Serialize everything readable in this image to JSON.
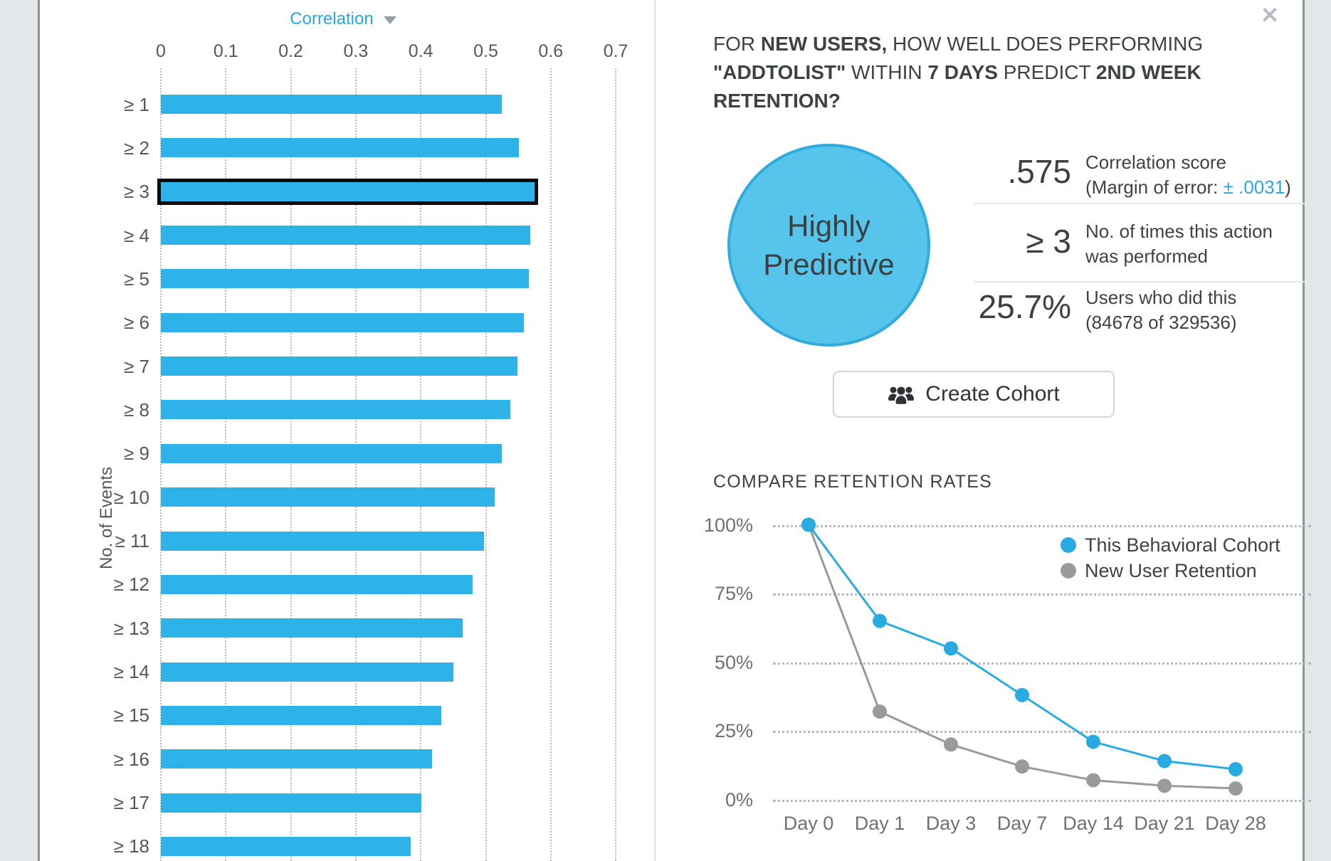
{
  "window": {
    "close_icon": "✕"
  },
  "correlation_chart": {
    "title": "Correlation",
    "y_axis_label": "No. of Events",
    "x_ticks": [
      "0",
      "0.1",
      "0.2",
      "0.3",
      "0.4",
      "0.5",
      "0.6",
      "0.7"
    ],
    "categories": [
      "≥ 1",
      "≥ 2",
      "≥ 3",
      "≥ 4",
      "≥ 5",
      "≥ 6",
      "≥ 7",
      "≥ 8",
      "≥ 9",
      "≥ 10",
      "≥ 11",
      "≥ 12",
      "≥ 13",
      "≥ 14",
      "≥ 15",
      "≥ 16",
      "≥ 17",
      "≥ 18"
    ],
    "values": [
      0.525,
      0.551,
      0.575,
      0.569,
      0.566,
      0.559,
      0.549,
      0.538,
      0.525,
      0.514,
      0.497,
      0.48,
      0.464,
      0.45,
      0.432,
      0.417,
      0.401,
      0.384
    ],
    "highlighted_index": 2,
    "bar_color": "#2eb3e8",
    "highlight_border_color": "#0b0b0b"
  },
  "insight_panel": {
    "question_segments": [
      {
        "text": "FOR ",
        "bold": false
      },
      {
        "text": "NEW USERS,",
        "bold": true
      },
      {
        "text": " HOW WELL DOES PERFORMING",
        "bold": false,
        "br": true
      },
      {
        "text": "\"ADDTOLIST\"",
        "bold": true
      },
      {
        "text": " WITHIN ",
        "bold": false
      },
      {
        "text": "7 DAYS",
        "bold": true
      },
      {
        "text": " PREDICT ",
        "bold": false
      },
      {
        "text": "2ND WEEK",
        "bold": true,
        "br": true
      },
      {
        "text": "RETENTION?",
        "bold": true
      }
    ],
    "badge": {
      "line1": "Highly",
      "line2": "Predictive",
      "fill": "#57c4ec",
      "border": "#2fabdd"
    },
    "stats": [
      {
        "value": ".575",
        "line1": "Correlation score",
        "line2_prefix": "(Margin of error: ",
        "line2_highlight": "± .0031",
        "line2_suffix": ")"
      },
      {
        "value": "≥ 3",
        "line1": "No. of times this action",
        "line2": "was performed"
      },
      {
        "value": "25.7%",
        "line1": "Users who did this",
        "line2": "(84678 of 329536)"
      }
    ],
    "create_cohort": {
      "label": "Create Cohort"
    }
  },
  "retention_chart": {
    "title": "COMPARE RETENTION RATES",
    "y_ticks": [
      "100%",
      "75%",
      "50%",
      "25%",
      "0%"
    ],
    "x_labels": [
      "Day 0",
      "Day 1",
      "Day 3",
      "Day 7",
      "Day 14",
      "Day 21",
      "Day 28"
    ],
    "series": [
      {
        "name": "This Behavioral Cohort",
        "color": "#29abe2",
        "values": [
          100,
          65,
          55,
          38,
          21,
          14,
          11
        ]
      },
      {
        "name": "New User Retention",
        "color": "#9a9a9a",
        "values": [
          100,
          32,
          20,
          12,
          7,
          5,
          4
        ]
      }
    ]
  },
  "chart_data": [
    {
      "type": "bar",
      "orientation": "horizontal",
      "title": "Correlation",
      "xlabel": "Correlation",
      "ylabel": "No. of Events",
      "categories": [
        "≥ 1",
        "≥ 2",
        "≥ 3",
        "≥ 4",
        "≥ 5",
        "≥ 6",
        "≥ 7",
        "≥ 8",
        "≥ 9",
        "≥ 10",
        "≥ 11",
        "≥ 12",
        "≥ 13",
        "≥ 14",
        "≥ 15",
        "≥ 16",
        "≥ 17",
        "≥ 18"
      ],
      "values": [
        0.525,
        0.551,
        0.575,
        0.569,
        0.566,
        0.559,
        0.549,
        0.538,
        0.525,
        0.514,
        0.497,
        0.48,
        0.464,
        0.45,
        0.432,
        0.417,
        0.401,
        0.384
      ],
      "xlim": [
        0,
        0.7
      ],
      "grid": true,
      "highlighted_category": "≥ 3"
    },
    {
      "type": "line",
      "title": "COMPARE RETENTION RATES",
      "x": [
        "Day 0",
        "Day 1",
        "Day 3",
        "Day 7",
        "Day 14",
        "Day 21",
        "Day 28"
      ],
      "series": [
        {
          "name": "This Behavioral Cohort",
          "values": [
            100,
            65,
            55,
            38,
            21,
            14,
            11
          ]
        },
        {
          "name": "New User Retention",
          "values": [
            100,
            32,
            20,
            12,
            7,
            5,
            4
          ]
        }
      ],
      "ylim": [
        0,
        100
      ],
      "y_tick_labels": [
        "0%",
        "25%",
        "50%",
        "75%",
        "100%"
      ],
      "grid": true,
      "legend_position": "top-right"
    }
  ]
}
